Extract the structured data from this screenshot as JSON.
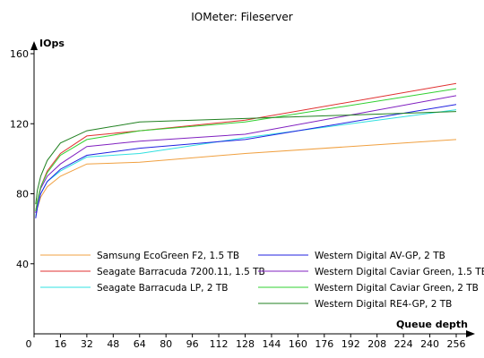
{
  "chart_data": {
    "type": "line",
    "title": "IOMeter: Fileserver",
    "ylabel": "IOps",
    "xlabel": "Queue depth",
    "x_ticks": [
      "0",
      "16",
      "32",
      "48",
      "64",
      "80",
      "96",
      "112",
      "128",
      "144",
      "160",
      "176",
      "192",
      "208",
      "224",
      "240",
      "256"
    ],
    "y_ticks": [
      "40",
      "80",
      "120",
      "160"
    ],
    "xlim": [
      0,
      260
    ],
    "ylim": [
      0,
      160
    ],
    "grid": false,
    "legend_position": "bottom",
    "x": [
      1,
      2,
      4,
      8,
      16,
      32,
      64,
      128,
      256
    ],
    "series": [
      {
        "name": "Samsung EcoGreen F2, 1.5 TB",
        "color": "#f0a040",
        "values": [
          67,
          72,
          78,
          84,
          90,
          97,
          98,
          103,
          111
        ]
      },
      {
        "name": "Seagate Barracuda 7200.11, 1.5 TB",
        "color": "#e03030",
        "values": [
          70,
          76,
          84,
          93,
          103,
          113,
          116,
          122,
          143
        ]
      },
      {
        "name": "Seagate Barracuda LP, 2 TB",
        "color": "#30e0e0",
        "values": [
          67,
          73,
          80,
          87,
          93,
          101,
          103,
          112,
          128
        ]
      },
      {
        "name": "Western Digital AV-GP, 2 TB",
        "color": "#2020e0",
        "values": [
          66,
          72,
          80,
          87,
          94,
          102,
          106,
          111,
          131
        ]
      },
      {
        "name": "Western Digital Caviar Green, 1.5 TB",
        "color": "#8020c0",
        "values": [
          69,
          75,
          83,
          90,
          97,
          107,
          110,
          114,
          136
        ]
      },
      {
        "name": "Western Digital Caviar Green, 2 TB",
        "color": "#30d030",
        "values": [
          70,
          76,
          84,
          92,
          102,
          111,
          116,
          121,
          140
        ]
      },
      {
        "name": "Western Digital RE4-GP, 2 TB",
        "color": "#208020",
        "values": [
          74,
          82,
          90,
          99,
          109,
          116,
          121,
          123,
          127
        ]
      }
    ]
  }
}
